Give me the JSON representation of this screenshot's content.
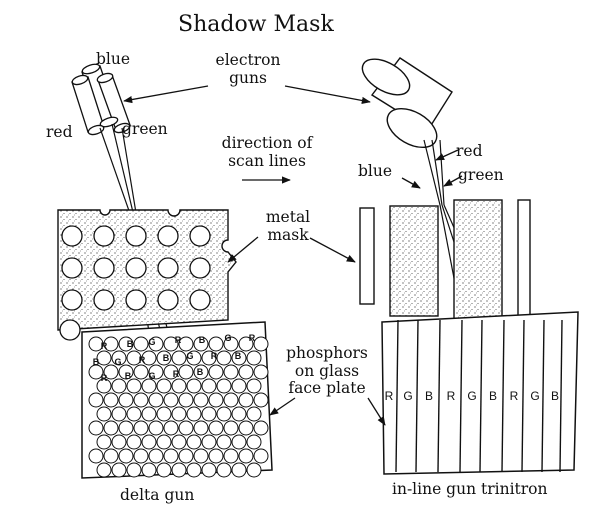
{
  "title": "Shadow Mask",
  "labels": {
    "blue_left": "blue",
    "electron_guns_line1": "electron",
    "electron_guns_line2": "guns",
    "red_left": "red",
    "green_left": "green",
    "direction_line1": "direction of",
    "direction_line2": "scan lines",
    "red_right": "red",
    "blue_right": "blue",
    "green_right": "green",
    "metal_line1": "metal",
    "metal_line2": "mask",
    "phosphors_line1": "phosphors",
    "phosphors_line2": "on glass",
    "phosphors_line3": "face plate",
    "delta_gun": "delta gun",
    "inline_gun": "in-line gun trinitron"
  },
  "delta_phosphor_letters": [
    "R",
    "B",
    "G",
    "R",
    "B",
    "G",
    "R",
    "B",
    "G",
    "R",
    "B",
    "G",
    "R",
    "B",
    "R",
    "B",
    "G",
    "R",
    "B"
  ],
  "trinitron_strip_letters": [
    "R",
    "G",
    "B",
    "R",
    "G",
    "B",
    "R",
    "G",
    "B"
  ]
}
